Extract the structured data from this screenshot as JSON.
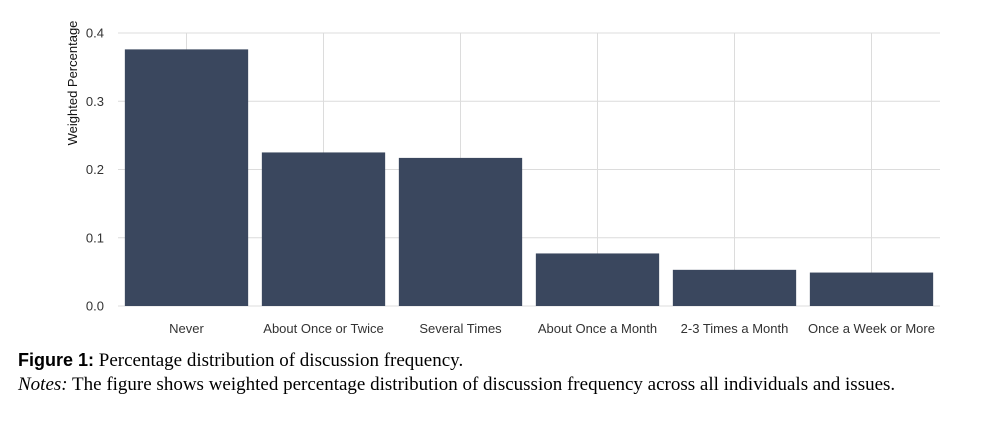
{
  "chart_data": {
    "type": "bar",
    "categories": [
      "Never",
      "About Once or Twice",
      "Several Times",
      "About Once a Month",
      "2-3 Times a Month",
      "Once a Week or More"
    ],
    "values": [
      0.376,
      0.225,
      0.217,
      0.077,
      0.053,
      0.049
    ],
    "ylabel": "Weighted Percentage",
    "xlabel": "",
    "ylim": [
      0,
      0.4
    ],
    "yticks": [
      "0.0",
      "0.1",
      "0.2",
      "0.3",
      "0.4"
    ],
    "grid": true,
    "bar_color": "#3a475e",
    "grid_color": "#dcdcdc"
  },
  "caption": {
    "figure_label": "Figure 1:",
    "figure_text": "Percentage distribution of discussion frequency.",
    "notes_label": "Notes:",
    "notes_text": "The figure shows weighted percentage distribution of discussion frequency across all individuals and issues."
  }
}
